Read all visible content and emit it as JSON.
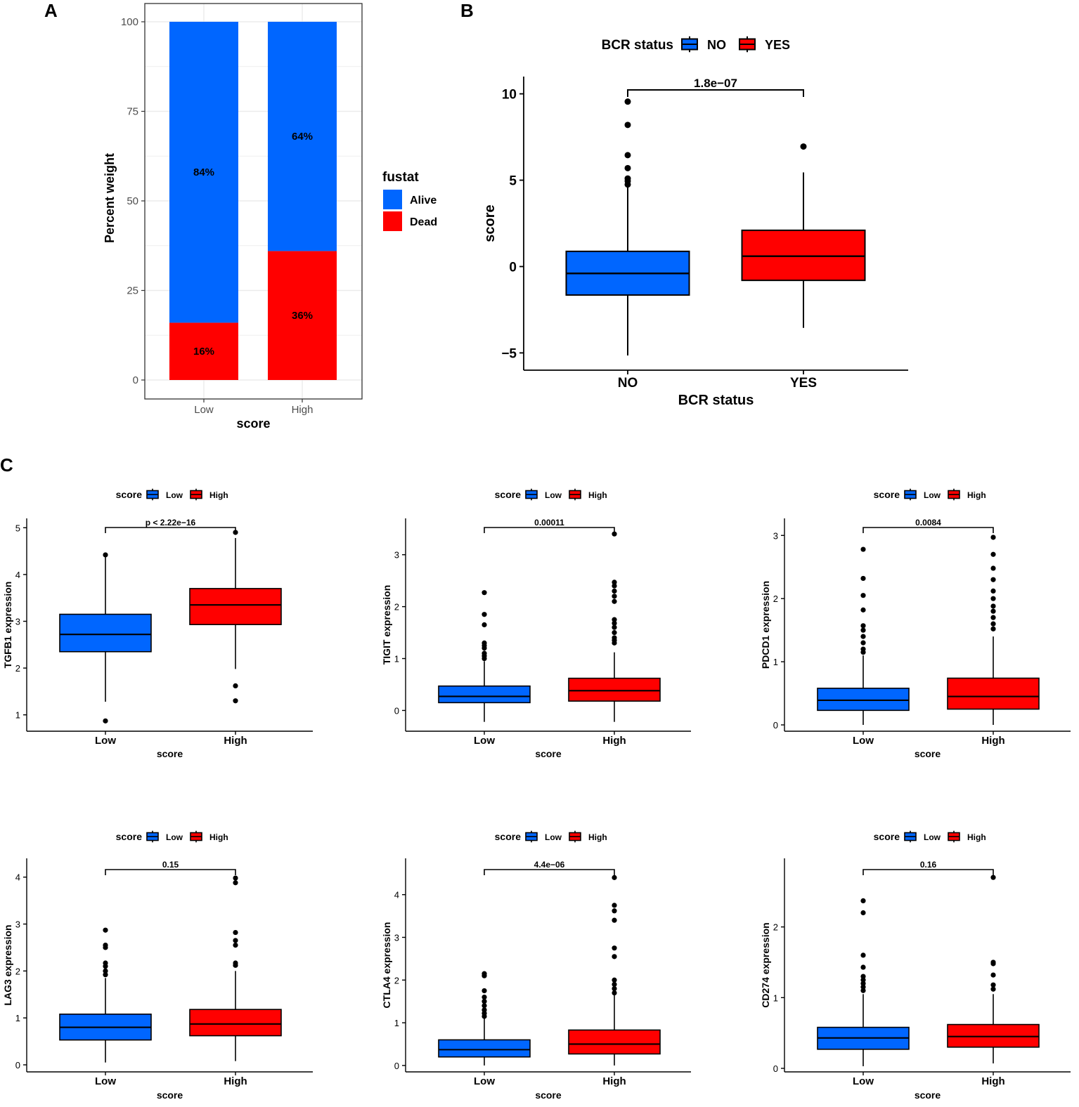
{
  "colors": {
    "blue": "#0066FF",
    "red": "#FF0000",
    "grid": "#EBEBEB",
    "border": "#333333",
    "axis": "#000000"
  },
  "panel_labels": [
    "A",
    "B",
    "C"
  ],
  "chart_data": [
    {
      "id": "A",
      "type": "bar",
      "stacked": true,
      "categories": [
        "Low",
        "High"
      ],
      "series": [
        {
          "name": "Dead",
          "color": "#FF0000",
          "values": [
            16,
            36
          ],
          "labels": [
            "16%",
            "36%"
          ]
        },
        {
          "name": "Alive",
          "color": "#0066FF",
          "values": [
            84,
            64
          ],
          "labels": [
            "84%",
            "64%"
          ]
        }
      ],
      "xlabel": "score",
      "ylabel": "Percent weight",
      "ylim": [
        0,
        100
      ],
      "yticks": [
        0,
        25,
        50,
        75,
        100
      ],
      "grid": true,
      "legend": {
        "title": "fustat",
        "position": "right",
        "entries": [
          "Alive",
          "Dead"
        ]
      }
    },
    {
      "id": "B",
      "type": "boxplot",
      "categories": [
        "NO",
        "YES"
      ],
      "groups": [
        {
          "name": "NO",
          "color": "#0066FF",
          "q1": -1.65,
          "median": -0.4,
          "q3": 0.88,
          "whisker_low": -5.15,
          "whisker_high": 4.6,
          "outliers": [
            4.75,
            4.95,
            5.1,
            5.7,
            6.45,
            8.2,
            9.55
          ]
        },
        {
          "name": "YES",
          "color": "#FF0000",
          "q1": -0.8,
          "median": 0.6,
          "q3": 2.1,
          "whisker_low": -3.55,
          "whisker_high": 5.45,
          "outliers": [
            6.95
          ]
        }
      ],
      "xlabel": "BCR status",
      "ylabel": "score",
      "ylim": [
        -6,
        11
      ],
      "yticks": [
        -5,
        0,
        5,
        10
      ],
      "p_value": "1.8e−07",
      "legend": {
        "title": "BCR status",
        "position": "top",
        "entries": [
          "NO",
          "YES"
        ]
      }
    },
    {
      "id": "C1",
      "type": "boxplot",
      "categories": [
        "Low",
        "High"
      ],
      "groups": [
        {
          "name": "Low",
          "color": "#0066FF",
          "q1": 2.35,
          "median": 2.72,
          "q3": 3.15,
          "whisker_low": 1.28,
          "whisker_high": 4.38,
          "outliers": [
            0.87,
            4.42
          ]
        },
        {
          "name": "High",
          "color": "#FF0000",
          "q1": 2.93,
          "median": 3.35,
          "q3": 3.7,
          "whisker_low": 1.98,
          "whisker_high": 4.78,
          "outliers": [
            1.3,
            1.62,
            4.9
          ]
        }
      ],
      "xlabel": "score",
      "ylabel": "TGFB1 expression",
      "ylim": [
        0.65,
        5.2
      ],
      "yticks": [
        1,
        2,
        3,
        4,
        5
      ],
      "p_value": "p < 2.22e−16",
      "legend": {
        "title": "score",
        "position": "top",
        "entries": [
          "Low",
          "High"
        ]
      }
    },
    {
      "id": "C2",
      "type": "boxplot",
      "categories": [
        "Low",
        "High"
      ],
      "groups": [
        {
          "name": "Low",
          "color": "#0066FF",
          "q1": 0.15,
          "median": 0.27,
          "q3": 0.47,
          "whisker_low": -0.22,
          "whisker_high": 0.95,
          "outliers": [
            1.0,
            1.05,
            1.1,
            1.2,
            1.25,
            1.3,
            1.65,
            1.85,
            2.27
          ]
        },
        {
          "name": "High",
          "color": "#FF0000",
          "q1": 0.18,
          "median": 0.38,
          "q3": 0.62,
          "whisker_low": -0.22,
          "whisker_high": 1.12,
          "outliers": [
            1.3,
            1.35,
            1.4,
            1.5,
            1.6,
            1.68,
            1.75,
            2.1,
            2.2,
            2.3,
            2.4,
            2.47,
            3.4
          ]
        }
      ],
      "xlabel": "score",
      "ylabel": "TIGIT expression",
      "ylim": [
        -0.4,
        3.7
      ],
      "yticks": [
        0,
        1,
        2,
        3
      ],
      "p_value": "0.00011",
      "legend": {
        "title": "score",
        "position": "top",
        "entries": [
          "Low",
          "High"
        ]
      }
    },
    {
      "id": "C3",
      "type": "boxplot",
      "categories": [
        "Low",
        "High"
      ],
      "groups": [
        {
          "name": "Low",
          "color": "#0066FF",
          "q1": 0.23,
          "median": 0.39,
          "q3": 0.58,
          "whisker_low": 0.0,
          "whisker_high": 1.1,
          "outliers": [
            1.15,
            1.2,
            1.3,
            1.4,
            1.5,
            1.57,
            1.82,
            2.05,
            2.32,
            2.78
          ]
        },
        {
          "name": "High",
          "color": "#FF0000",
          "q1": 0.25,
          "median": 0.45,
          "q3": 0.74,
          "whisker_low": 0.0,
          "whisker_high": 1.4,
          "outliers": [
            1.52,
            1.6,
            1.7,
            1.8,
            1.88,
            2.0,
            2.12,
            2.3,
            2.48,
            2.7,
            2.97
          ]
        }
      ],
      "xlabel": "score",
      "ylabel": "PDCD1 expression",
      "ylim": [
        -0.1,
        3.27
      ],
      "yticks": [
        0,
        1,
        2,
        3
      ],
      "p_value": "0.0084",
      "legend": {
        "title": "score",
        "position": "top",
        "entries": [
          "Low",
          "High"
        ]
      }
    },
    {
      "id": "C4",
      "type": "boxplot",
      "categories": [
        "Low",
        "High"
      ],
      "groups": [
        {
          "name": "Low",
          "color": "#0066FF",
          "q1": 0.53,
          "median": 0.8,
          "q3": 1.08,
          "whisker_low": 0.05,
          "whisker_high": 1.85,
          "outliers": [
            1.92,
            2.0,
            2.1,
            2.17,
            2.5,
            2.55,
            2.87
          ]
        },
        {
          "name": "High",
          "color": "#FF0000",
          "q1": 0.62,
          "median": 0.87,
          "q3": 1.18,
          "whisker_low": 0.08,
          "whisker_high": 2.0,
          "outliers": [
            2.12,
            2.17,
            2.55,
            2.65,
            2.82,
            3.88,
            3.98
          ]
        }
      ],
      "xlabel": "score",
      "ylabel": "LAG3 expression",
      "ylim": [
        -0.15,
        4.4
      ],
      "yticks": [
        0,
        1,
        2,
        3,
        4
      ],
      "p_value": "0.15",
      "legend": {
        "title": "score",
        "position": "top",
        "entries": [
          "Low",
          "High"
        ]
      }
    },
    {
      "id": "C5",
      "type": "boxplot",
      "categories": [
        "Low",
        "High"
      ],
      "groups": [
        {
          "name": "Low",
          "color": "#0066FF",
          "q1": 0.2,
          "median": 0.37,
          "q3": 0.6,
          "whisker_low": 0.0,
          "whisker_high": 1.1,
          "outliers": [
            1.15,
            1.22,
            1.3,
            1.4,
            1.5,
            1.6,
            1.75,
            2.1,
            2.15
          ]
        },
        {
          "name": "High",
          "color": "#FF0000",
          "q1": 0.27,
          "median": 0.5,
          "q3": 0.83,
          "whisker_low": 0.0,
          "whisker_high": 1.65,
          "outliers": [
            1.7,
            1.8,
            1.9,
            2.0,
            2.55,
            2.75,
            3.4,
            3.62,
            3.75,
            4.4
          ]
        }
      ],
      "xlabel": "score",
      "ylabel": "CTLA4 expression",
      "ylim": [
        -0.15,
        4.85
      ],
      "yticks": [
        0,
        1,
        2,
        3,
        4
      ],
      "p_value": "4.4e−06",
      "legend": {
        "title": "score",
        "position": "top",
        "entries": [
          "Low",
          "High"
        ]
      }
    },
    {
      "id": "C6",
      "type": "boxplot",
      "categories": [
        "Low",
        "High"
      ],
      "groups": [
        {
          "name": "Low",
          "color": "#0066FF",
          "q1": 0.27,
          "median": 0.43,
          "q3": 0.58,
          "whisker_low": 0.03,
          "whisker_high": 1.05,
          "outliers": [
            1.1,
            1.15,
            1.2,
            1.25,
            1.3,
            1.43,
            1.6,
            2.2,
            2.37
          ]
        },
        {
          "name": "High",
          "color": "#FF0000",
          "q1": 0.3,
          "median": 0.45,
          "q3": 0.62,
          "whisker_low": 0.07,
          "whisker_high": 1.05,
          "outliers": [
            1.12,
            1.18,
            1.32,
            1.48,
            1.5,
            2.7
          ]
        }
      ],
      "xlabel": "score",
      "ylabel": "CD274 expression",
      "ylim": [
        -0.05,
        2.97
      ],
      "yticks": [
        0,
        1,
        2
      ],
      "p_value": "0.16",
      "legend": {
        "title": "score",
        "position": "top",
        "entries": [
          "Low",
          "High"
        ]
      }
    }
  ]
}
